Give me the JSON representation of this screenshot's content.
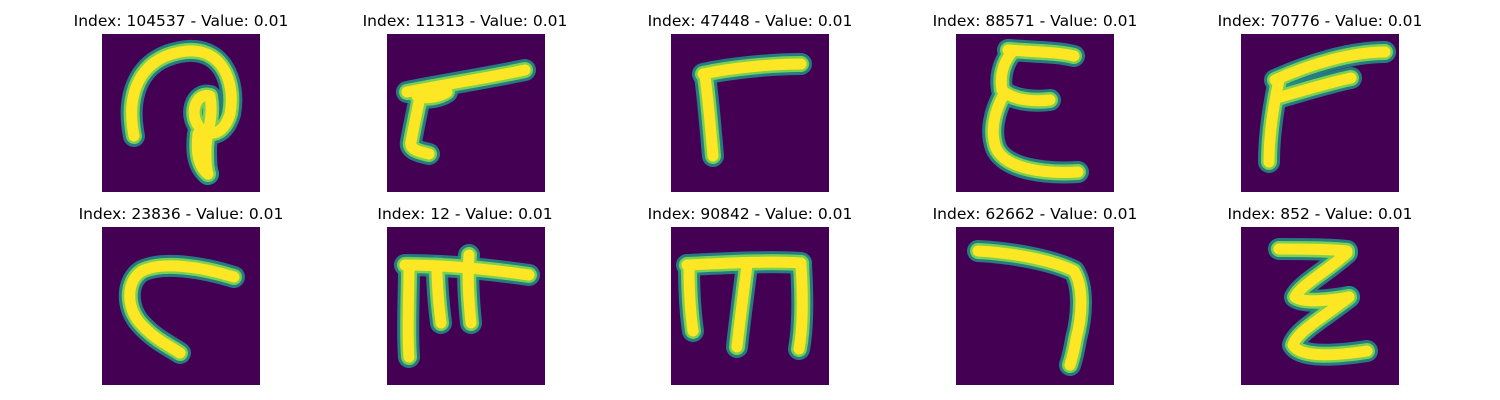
{
  "colors": {
    "background": "#440154",
    "glow": "#21918c",
    "mid": "#7ad151",
    "core": "#fde725"
  },
  "panels": [
    {
      "index": "104537",
      "value": "0.01",
      "title": "Index: 104537 - Value: 0.01"
    },
    {
      "index": "11313",
      "value": "0.01",
      "title": "Index: 11313 - Value: 0.01"
    },
    {
      "index": "47448",
      "value": "0.01",
      "title": "Index: 47448 - Value: 0.01"
    },
    {
      "index": "88571",
      "value": "0.01",
      "title": "Index: 88571 - Value: 0.01"
    },
    {
      "index": "70776",
      "value": "0.01",
      "title": "Index: 70776 - Value: 0.01"
    },
    {
      "index": "23836",
      "value": "0.01",
      "title": "Index: 23836 - Value: 0.01"
    },
    {
      "index": "12",
      "value": "0.01",
      "title": "Index: 12 - Value: 0.01"
    },
    {
      "index": "90842",
      "value": "0.01",
      "title": "Index: 90842 - Value: 0.01"
    },
    {
      "index": "62662",
      "value": "0.01",
      "title": "Index: 62662 - Value: 0.01"
    },
    {
      "index": "852",
      "value": "0.01",
      "title": "Index: 852 - Value: 0.01"
    }
  ]
}
